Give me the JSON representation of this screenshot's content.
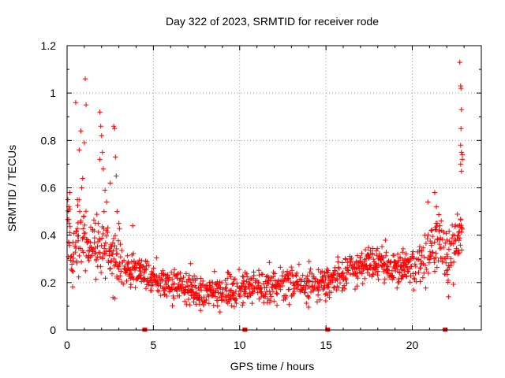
{
  "chart_data": {
    "type": "scatter",
    "title": "Day 322 of 2023, SRMTID for receiver rode",
    "xlabel": "GPS time / hours",
    "ylabel": "SRMTID / TECUs",
    "xlim": [
      0,
      24
    ],
    "ylim": [
      0,
      1.2
    ],
    "xticks": [
      0,
      5,
      10,
      15,
      20
    ],
    "xtick_labels": [
      "0",
      "5",
      "10",
      "15",
      "20"
    ],
    "yticks": [
      0,
      0.2,
      0.4,
      0.6,
      0.8,
      1.0,
      1.2
    ],
    "ytick_labels": [
      "0",
      "0.2",
      "0.4",
      "0.6",
      "0.8",
      "1",
      "1.2"
    ],
    "grid": true,
    "marker": "+",
    "color": "#ff0000",
    "zero_markers_x": [
      4.5,
      10.3,
      15.1,
      21.9
    ],
    "profile_x": [
      0,
      0.3,
      0.6,
      1.0,
      1.5,
      2.0,
      2.5,
      3.0,
      3.5,
      4.0,
      5.0,
      6.0,
      7.0,
      8.0,
      9.0,
      10.0,
      11.0,
      12.0,
      13.0,
      14.0,
      15.0,
      16.0,
      17.0,
      18.0,
      19.0,
      20.0,
      21.0,
      21.5,
      22.0,
      22.5,
      22.8
    ],
    "profile_y": [
      0.48,
      0.3,
      0.4,
      0.4,
      0.33,
      0.4,
      0.35,
      0.27,
      0.26,
      0.24,
      0.22,
      0.2,
      0.18,
      0.16,
      0.16,
      0.17,
      0.19,
      0.19,
      0.2,
      0.19,
      0.2,
      0.24,
      0.28,
      0.28,
      0.27,
      0.26,
      0.33,
      0.4,
      0.3,
      0.36,
      0.4
    ],
    "outliers": [
      {
        "x": 0.05,
        "y": 0.55
      },
      {
        "x": 0.1,
        "y": 0.52
      },
      {
        "x": 0.15,
        "y": 0.58
      },
      {
        "x": 0.5,
        "y": 0.96
      },
      {
        "x": 0.7,
        "y": 0.76
      },
      {
        "x": 0.8,
        "y": 0.84
      },
      {
        "x": 0.9,
        "y": 0.64
      },
      {
        "x": 1.0,
        "y": 0.79
      },
      {
        "x": 1.05,
        "y": 1.06
      },
      {
        "x": 1.1,
        "y": 0.95
      },
      {
        "x": 0.6,
        "y": 0.55
      },
      {
        "x": 0.85,
        "y": 0.6
      },
      {
        "x": 1.9,
        "y": 0.92
      },
      {
        "x": 1.95,
        "y": 0.86
      },
      {
        "x": 2.0,
        "y": 0.82
      },
      {
        "x": 2.05,
        "y": 0.75
      },
      {
        "x": 1.9,
        "y": 0.72
      },
      {
        "x": 2.1,
        "y": 0.68
      },
      {
        "x": 2.2,
        "y": 0.59
      },
      {
        "x": 2.5,
        "y": 0.62
      },
      {
        "x": 2.7,
        "y": 0.86
      },
      {
        "x": 2.75,
        "y": 0.85
      },
      {
        "x": 2.8,
        "y": 0.73
      },
      {
        "x": 2.85,
        "y": 0.65
      },
      {
        "x": 2.9,
        "y": 0.5
      },
      {
        "x": 3.0,
        "y": 0.45
      },
      {
        "x": 3.8,
        "y": 0.44
      },
      {
        "x": 20.9,
        "y": 0.54
      },
      {
        "x": 21.3,
        "y": 0.58
      },
      {
        "x": 21.4,
        "y": 0.52
      },
      {
        "x": 21.6,
        "y": 0.44
      },
      {
        "x": 22.1,
        "y": 0.14
      },
      {
        "x": 22.75,
        "y": 1.13
      },
      {
        "x": 22.8,
        "y": 1.03
      },
      {
        "x": 22.82,
        "y": 1.02
      },
      {
        "x": 22.85,
        "y": 0.93
      },
      {
        "x": 22.82,
        "y": 0.85
      },
      {
        "x": 22.8,
        "y": 0.78
      },
      {
        "x": 22.85,
        "y": 0.75
      },
      {
        "x": 22.9,
        "y": 0.72
      },
      {
        "x": 22.8,
        "y": 0.7
      },
      {
        "x": 22.85,
        "y": 0.67
      },
      {
        "x": 22.9,
        "y": 0.74
      }
    ]
  }
}
